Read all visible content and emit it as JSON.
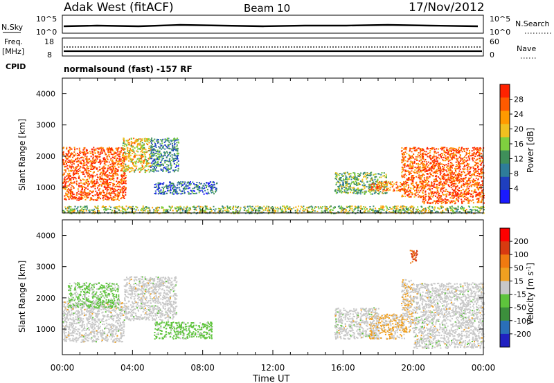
{
  "header": {
    "station": "Adak West (fitACF)",
    "beam": "Beam 10",
    "date": "17/Nov/2012"
  },
  "nsky_panel": {
    "left_label": "N.Sky",
    "left_ticks": [
      "10^5",
      "10^0"
    ],
    "right_label": "N.Search",
    "right_ticks": [
      "10^5",
      "10^0"
    ]
  },
  "freq_panel": {
    "left_label_line1": "Freq.",
    "left_label_line2": "[MHz]",
    "left_ticks": [
      "18",
      "8"
    ],
    "right_label": "Nave",
    "right_ticks": [
      "60",
      "0"
    ],
    "cpid_label": "CPID",
    "cpid_text": "normalsound (fast) -157 RF"
  },
  "axes": {
    "ylabel": "Slant Range [km]",
    "yticks": [
      "4000",
      "3000",
      "2000",
      "1000"
    ],
    "xlabel": "Time UT",
    "xticks": [
      "00:00",
      "04:00",
      "08:00",
      "12:00",
      "16:00",
      "20:00",
      "00:00"
    ]
  },
  "colors": {
    "power_scale": [
      "#1a1aff",
      "#1f3fbf",
      "#2e7d9a",
      "#3f8f5a",
      "#7fcf3f",
      "#f0c020",
      "#ff9a00",
      "#ff5a00",
      "#ff2200"
    ],
    "velocity_scale": [
      "#2020c0",
      "#2a6fb8",
      "#3c8f3c",
      "#5ec43c",
      "#c8c8c8",
      "#f0a020",
      "#f07a10",
      "#d83a10",
      "#ff0000"
    ]
  },
  "chart_data": [
    {
      "type": "heatmap",
      "name_panel": "power",
      "x_range_hours": [
        0,
        24
      ],
      "y_range_km": [
        180,
        4500
      ],
      "colorbar_label": "Power [dB]",
      "colorbar_ticks": [
        "28",
        "24",
        "20",
        "16",
        "12",
        "8",
        "4"
      ],
      "colorbar_range": [
        0,
        32
      ],
      "regions": [
        {
          "t0": 0.0,
          "t1": 3.6,
          "r0": 600,
          "r1": 2300,
          "dB": 28
        },
        {
          "t0": 3.4,
          "t1": 5.0,
          "r0": 1500,
          "r1": 2600,
          "dB": 20
        },
        {
          "t0": 5.0,
          "t1": 6.6,
          "r0": 1500,
          "r1": 2600,
          "dB": 10
        },
        {
          "t0": 5.2,
          "t1": 8.8,
          "r0": 800,
          "r1": 1200,
          "dB": 8
        },
        {
          "t0": 15.5,
          "t1": 18.5,
          "r0": 800,
          "r1": 1500,
          "dB": 14
        },
        {
          "t0": 17.5,
          "t1": 19.5,
          "r0": 900,
          "r1": 1200,
          "dB": 24
        },
        {
          "t0": 19.3,
          "t1": 20.5,
          "r0": 700,
          "r1": 2300,
          "dB": 26
        },
        {
          "t0": 20.5,
          "t1": 24.0,
          "r0": 500,
          "r1": 2300,
          "dB": 28
        },
        {
          "t0": 0.0,
          "t1": 24.0,
          "r0": 180,
          "r1": 420,
          "dB": 16
        }
      ]
    },
    {
      "type": "heatmap",
      "name_panel": "velocity",
      "x_range_hours": [
        0,
        24
      ],
      "y_range_km": [
        180,
        4500
      ],
      "colorbar_label": "Velocity [m s^-1]",
      "colorbar_ticks": [
        "200",
        "100",
        "50",
        "15",
        "-15",
        "-50",
        "-100",
        "-200"
      ],
      "colorbar_range": [
        -250,
        250
      ],
      "regions": [
        {
          "t0": 0.0,
          "t1": 3.5,
          "r0": 600,
          "r1": 1900,
          "v": 0
        },
        {
          "t0": 0.3,
          "t1": 3.2,
          "r0": 1700,
          "r1": 2500,
          "v": -40
        },
        {
          "t0": 3.5,
          "t1": 6.5,
          "r0": 1300,
          "r1": 2700,
          "v": 0
        },
        {
          "t0": 5.2,
          "t1": 8.5,
          "r0": 700,
          "r1": 1250,
          "v": -50
        },
        {
          "t0": 15.5,
          "t1": 18.0,
          "r0": 700,
          "r1": 1700,
          "v": 0
        },
        {
          "t0": 17.5,
          "t1": 19.5,
          "r0": 700,
          "r1": 1500,
          "v": 30
        },
        {
          "t0": 19.3,
          "t1": 20.0,
          "r0": 900,
          "r1": 2600,
          "v": 20
        },
        {
          "t0": 20.0,
          "t1": 24.0,
          "r0": 400,
          "r1": 2500,
          "v": 0
        },
        {
          "t0": 19.8,
          "t1": 20.2,
          "r0": 3100,
          "r1": 3550,
          "v": 150
        }
      ]
    }
  ]
}
